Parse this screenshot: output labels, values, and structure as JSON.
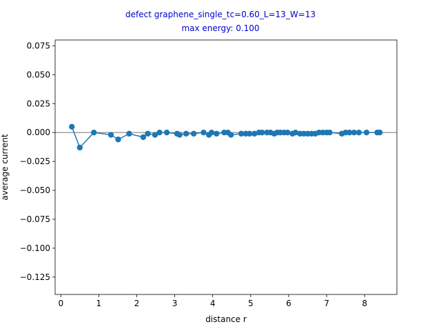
{
  "chart_data": {
    "type": "line",
    "title_lines": [
      "defect graphene_single_tc=0.60_L=13_W=13",
      "max energy: 0.100"
    ],
    "title_color": "#0000cc",
    "xlabel": "distance r",
    "ylabel": "average current",
    "xlim": [
      -0.15,
      8.85
    ],
    "ylim": [
      -0.14,
      0.08
    ],
    "xticks": [
      0,
      1,
      2,
      3,
      4,
      5,
      6,
      7,
      8
    ],
    "xtick_labels": [
      "0",
      "1",
      "2",
      "3",
      "4",
      "5",
      "6",
      "7",
      "8"
    ],
    "yticks": [
      0.075,
      0.05,
      0.025,
      0.0,
      -0.025,
      -0.05,
      -0.075,
      -0.1,
      -0.125
    ],
    "ytick_labels": [
      "0.075",
      "0.050",
      "0.025",
      "0.000",
      "−0.025",
      "−0.050",
      "−0.075",
      "−0.100",
      "−0.125"
    ],
    "reference_line_y": 0.0,
    "reference_line_color": "#808080",
    "series_color": "#1f77b4",
    "grid": false,
    "x": [
      0.29,
      0.5,
      0.87,
      1.32,
      1.51,
      1.8,
      2.17,
      2.29,
      2.48,
      2.6,
      2.79,
      3.06,
      3.13,
      3.3,
      3.5,
      3.76,
      3.9,
      3.97,
      4.1,
      4.3,
      4.4,
      4.48,
      4.75,
      4.87,
      4.97,
      5.1,
      5.22,
      5.3,
      5.43,
      5.52,
      5.62,
      5.7,
      5.78,
      5.88,
      5.97,
      6.1,
      6.18,
      6.3,
      6.4,
      6.5,
      6.6,
      6.7,
      6.8,
      6.9,
      7.0,
      7.08,
      7.4,
      7.5,
      7.6,
      7.72,
      7.85,
      8.05,
      8.33,
      8.4
    ],
    "y": [
      0.005,
      -0.013,
      0.0,
      -0.002,
      -0.006,
      -0.001,
      -0.004,
      -0.001,
      -0.002,
      0.0,
      0.0,
      -0.001,
      -0.002,
      -0.001,
      -0.001,
      0.0,
      -0.002,
      0.0,
      -0.001,
      0.0,
      0.0,
      -0.002,
      -0.001,
      -0.001,
      -0.001,
      -0.001,
      0.0,
      0.0,
      0.0,
      0.0,
      -0.001,
      0.0,
      0.0,
      0.0,
      0.0,
      -0.001,
      0.0,
      -0.001,
      -0.001,
      -0.001,
      -0.001,
      -0.001,
      0.0,
      0.0,
      0.0,
      0.0,
      -0.001,
      0.0,
      0.0,
      0.0,
      0.0,
      0.0,
      0.0,
      0.0
    ]
  }
}
